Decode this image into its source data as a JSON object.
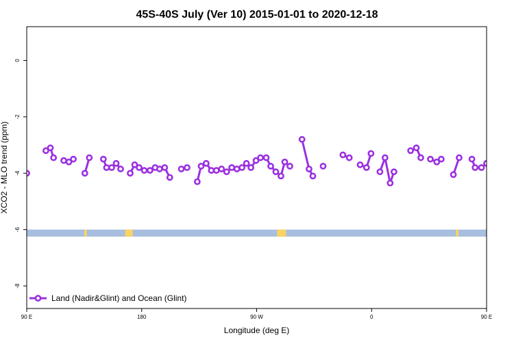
{
  "chart_data": {
    "type": "line",
    "title": "45S-40S July (Ver 10)   2015-01-01 to 2020-12-18",
    "xlabel": "Longitude (deg E)",
    "ylabel": "XCO2 - MLO trend (ppm)",
    "xlim": [
      90,
      450
    ],
    "ylim": [
      -8.8,
      1.2
    ],
    "x_ticks": [
      {
        "value": 90,
        "label": "90 E"
      },
      {
        "value": 180,
        "label": "180"
      },
      {
        "value": 270,
        "label": "90 W"
      },
      {
        "value": 360,
        "label": "0"
      },
      {
        "value": 450,
        "label": "90 E"
      },
      {
        "value": 540,
        "label": "180"
      }
    ],
    "y_ticks": [
      {
        "value": 0,
        "label": "0"
      },
      {
        "value": -2,
        "label": "-2"
      },
      {
        "value": -4,
        "label": "-4"
      },
      {
        "value": -6,
        "label": "-6"
      },
      {
        "value": -8,
        "label": "-8"
      }
    ],
    "grid": false,
    "legend_position": "bottom-left",
    "colors": {
      "series": "#9b30e0",
      "ocean": "#a8bedf",
      "land": "#f9d462"
    },
    "land_ocean_strip": {
      "y_range": [
        -6.25,
        -6.0
      ],
      "land_spans": [
        [
          135,
          137
        ],
        [
          167,
          173
        ],
        [
          286,
          293
        ],
        [
          426,
          428
        ],
        [
          480,
          484
        ]
      ]
    },
    "series": [
      {
        "name": "Land (Nadir&Glint) and Ocean (Glint)",
        "segments": [
          [
            [
              90,
              -4.0
            ]
          ],
          [
            [
              105,
              -3.2
            ],
            [
              108.5,
              -3.1
            ],
            [
              111,
              -3.45
            ]
          ],
          [
            [
              119,
              -3.55
            ],
            [
              123,
              -3.6
            ],
            [
              126.5,
              -3.5
            ]
          ],
          [
            [
              135.5,
              -4.0
            ],
            [
              139,
              -3.45
            ]
          ],
          [
            [
              150,
              -3.5
            ],
            [
              152.5,
              -3.8
            ],
            [
              156.5,
              -3.8
            ],
            [
              160,
              -3.65
            ],
            [
              163.5,
              -3.85
            ]
          ],
          [
            [
              171,
              -4.0
            ],
            [
              174.5,
              -3.7
            ],
            [
              178,
              -3.8
            ],
            [
              182,
              -3.9
            ],
            [
              186.5,
              -3.9
            ],
            [
              190.5,
              -3.8
            ],
            [
              194,
              -3.85
            ],
            [
              198,
              -3.8
            ],
            [
              202,
              -4.15
            ]
          ],
          [
            [
              211,
              -3.85
            ],
            [
              215.5,
              -3.8
            ]
          ],
          [
            [
              223.5,
              -4.3
            ],
            [
              226.5,
              -3.75
            ],
            [
              230.5,
              -3.65
            ],
            [
              234.5,
              -3.9
            ],
            [
              238.5,
              -3.9
            ],
            [
              242.5,
              -3.85
            ],
            [
              246.5,
              -3.95
            ],
            [
              250.5,
              -3.8
            ],
            [
              254.5,
              -3.85
            ],
            [
              258.5,
              -3.8
            ],
            [
              262,
              -3.65
            ],
            [
              265.5,
              -3.8
            ],
            [
              269.5,
              -3.55
            ],
            [
              273,
              -3.45
            ],
            [
              277.5,
              -3.45
            ],
            [
              281,
              -3.75
            ],
            [
              285,
              -3.95
            ],
            [
              289,
              -4.1
            ],
            [
              292,
              -3.6
            ],
            [
              296,
              -3.75
            ]
          ],
          [
            [
              305.5,
              -2.8
            ],
            [
              311,
              -3.85
            ],
            [
              314,
              -4.1
            ]
          ],
          [
            [
              322,
              -3.75
            ]
          ],
          [
            [
              337.5,
              -3.35
            ],
            [
              342.5,
              -3.45
            ]
          ],
          [
            [
              351,
              -3.7
            ],
            [
              356,
              -3.8
            ],
            [
              359.5,
              -3.3
            ]
          ],
          [
            [
              366.5,
              -3.95
            ],
            [
              370.5,
              -3.45
            ],
            [
              374.5,
              -4.35
            ],
            [
              377.5,
              -3.95
            ]
          ],
          [
            [
              390.5,
              -3.2
            ],
            [
              395,
              -3.1
            ],
            [
              398.5,
              -3.45
            ]
          ],
          [
            [
              406,
              -3.5
            ],
            [
              411,
              -3.6
            ],
            [
              414.5,
              -3.5
            ]
          ],
          [
            [
              424,
              -4.05
            ],
            [
              428.5,
              -3.45
            ]
          ],
          [
            [
              438.5,
              -3.5
            ],
            [
              441,
              -3.8
            ],
            [
              446,
              -3.8
            ],
            [
              450,
              -3.65
            ]
          ]
        ]
      }
    ]
  }
}
